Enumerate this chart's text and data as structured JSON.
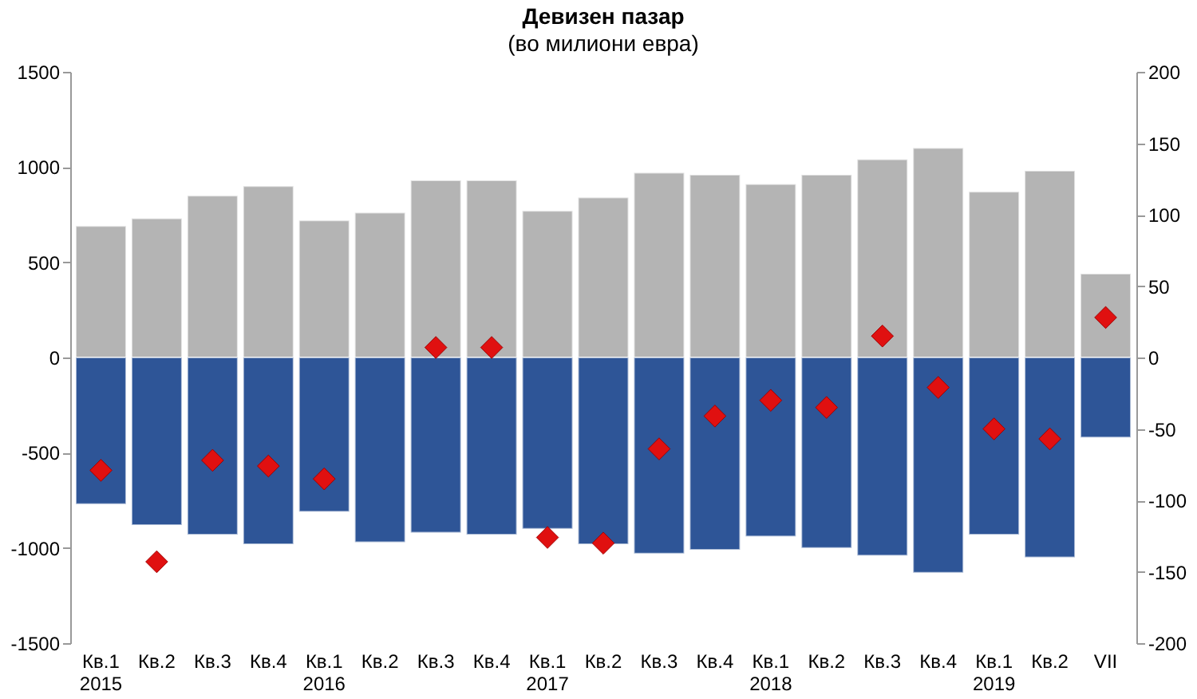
{
  "chart_data": {
    "type": "bar",
    "title": "Девизен пазар",
    "subtitle": "(во милиони евра)",
    "stacked": true,
    "categories": [
      "Кв.1\n2015",
      "Кв.2",
      "Кв.3",
      "Кв.4",
      "Кв.1\n2016",
      "Кв.2",
      "Кв.3",
      "Кв.4",
      "Кв.1\n2017",
      "Кв.2",
      "Кв.3",
      "Кв.4",
      "Кв.1\n2018",
      "Кв.2",
      "Кв.3",
      "Кв.4",
      "Кв.1\n2019",
      "Кв.2",
      "VII"
    ],
    "series": [
      {
        "color": "#b4b4b4",
        "values": [
          690,
          730,
          850,
          900,
          720,
          760,
          930,
          930,
          770,
          840,
          970,
          960,
          910,
          960,
          1040,
          1100,
          870,
          980,
          440
        ]
      },
      {
        "color": "#2e5597",
        "values": [
          -770,
          -880,
          -930,
          -980,
          -810,
          -970,
          -920,
          -930,
          -900,
          -980,
          -1030,
          -1010,
          -940,
          -1000,
          -1040,
          -1130,
          -930,
          -1050,
          -420
        ]
      },
      {
        "type": "scatter",
        "axis": "y2",
        "color": "#e01010",
        "values": [
          -79,
          -143,
          -72,
          -76,
          -85,
          null,
          7,
          7,
          -126,
          -130,
          -64,
          -41,
          -30,
          -35,
          15,
          -21,
          -50,
          -57,
          28
        ]
      }
    ],
    "marker": "diamond",
    "ylim": [
      -1500,
      1500
    ],
    "yticks": [
      -1500,
      -1000,
      -500,
      0,
      500,
      1000,
      1500
    ],
    "y2lim": [
      -200,
      200
    ],
    "y2ticks": [
      -200,
      -150,
      -100,
      -50,
      0,
      50,
      100,
      150,
      200
    ]
  }
}
